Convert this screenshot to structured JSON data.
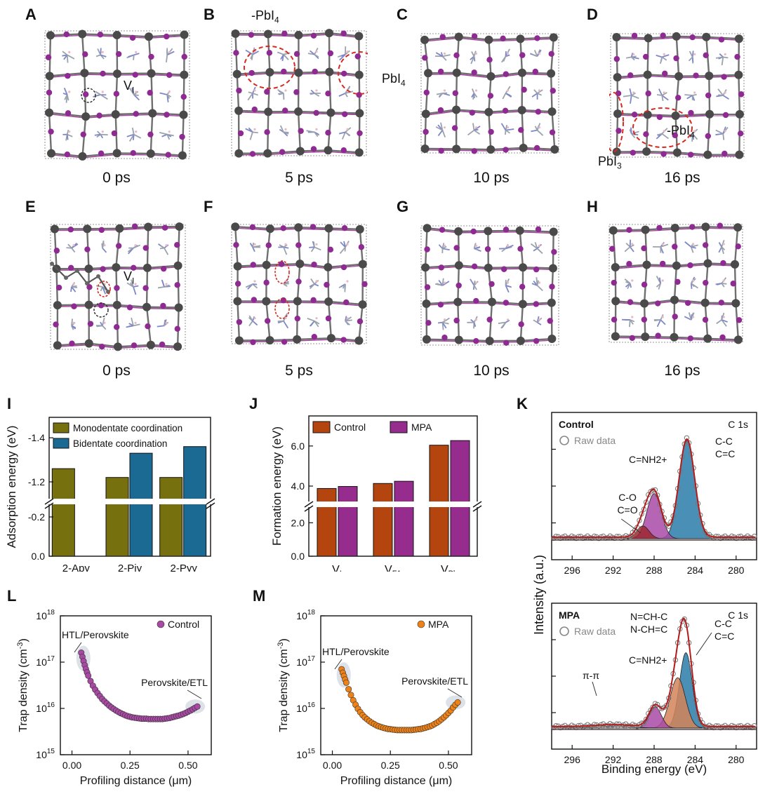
{
  "colors": {
    "lead": "#4a4a4a",
    "iodine": "#8e2a92",
    "bond_pb": "#6f6f6f",
    "bond_i": "#a4479f",
    "organic": "#9aa3ad",
    "highlight": "#d42a1f",
    "vacancy": "#222222",
    "mono": "#77700f",
    "bi": "#1b6a93",
    "control": "#b5450f",
    "mpa": "#952c8e",
    "control_scatter": "#a84aa4",
    "mpa_scatter": "#ee8216",
    "fit": "#b31b1b",
    "cc_peak": "#2a7ba8",
    "nh_peak": "#a84aa6",
    "co_peak": "#9d2730",
    "ch_peak": "#d48459"
  },
  "structures": [
    {
      "letter": "A",
      "time": "0 ps",
      "annotations": [
        {
          "text": "V",
          "sub": "I"
        }
      ]
    },
    {
      "letter": "B",
      "time": "5 ps",
      "annotations": [
        {
          "text": "-PbI",
          "sub": "4"
        },
        {
          "text": "PbI",
          "sub": "4"
        }
      ]
    },
    {
      "letter": "C",
      "time": "10 ps",
      "annotations": []
    },
    {
      "letter": "D",
      "time": "16 ps",
      "annotations": [
        {
          "text": "-PbI",
          "sub": "4"
        },
        {
          "text": "PbI",
          "sub": "3"
        }
      ]
    },
    {
      "letter": "E",
      "time": "0 ps",
      "annotations": [
        {
          "text": "V",
          "sub": "I"
        }
      ]
    },
    {
      "letter": "F",
      "time": "5 ps",
      "annotations": []
    },
    {
      "letter": "G",
      "time": "10 ps",
      "annotations": []
    },
    {
      "letter": "H",
      "time": "16 ps",
      "annotations": []
    }
  ],
  "chart_data": [
    {
      "panel": "I",
      "type": "bar",
      "title": "",
      "xlabel": "",
      "ylabel": "Adsorption energy (eV)",
      "categories": [
        "2-Apy",
        "2-Piy",
        "2-Pyy"
      ],
      "series": [
        {
          "name": "Monodentate coordination",
          "values": [
            -1.26,
            -1.22,
            -1.22
          ]
        },
        {
          "name": "Bidentate coordination",
          "values": [
            null,
            -1.33,
            -1.36
          ]
        }
      ],
      "axis": "reversed, broken",
      "lower_range": [
        0.0,
        -0.25
      ],
      "upper_range": [
        -1.13,
        -1.48
      ],
      "yticks": [
        "0.0",
        "-0.2",
        "-1.2",
        "-1.4"
      ],
      "legend": "top-left"
    },
    {
      "panel": "J",
      "type": "bar",
      "title": "",
      "xlabel": "",
      "ylabel": "Formation energy (eV)",
      "categories": [
        {
          "main": "V",
          "sub": "I"
        },
        {
          "main": "V",
          "sub": "FA"
        },
        {
          "main": "V",
          "sub": "Pb"
        }
      ],
      "series": [
        {
          "name": "Control",
          "values": [
            3.88,
            4.13,
            6.04
          ]
        },
        {
          "name": "MPA",
          "values": [
            3.98,
            4.24,
            6.27
          ]
        }
      ],
      "axis": "broken",
      "lower_range": [
        0.0,
        2.6
      ],
      "upper_range": [
        3.3,
        7.5
      ],
      "yticks": [
        "0.0",
        "2.0",
        "4.0",
        "6.0"
      ],
      "legend": "top-left"
    },
    {
      "panel": "K-top",
      "type": "line",
      "title": "Control",
      "label_right": "C 1s",
      "xlabel": "",
      "ylabel": "Intensity (a.u.)",
      "xlim": [
        298,
        278
      ],
      "xticks": [
        296,
        292,
        288,
        284,
        280
      ],
      "legend_entry": "Raw data",
      "components": [
        {
          "label_lines": [
            "C-C",
            "C=C"
          ],
          "center": 284.8,
          "height": 1.0,
          "width": 0.75
        },
        {
          "label_lines": [
            "C=NH2+"
          ],
          "center": 288.0,
          "height": 0.46,
          "width": 0.7
        },
        {
          "label_lines": [
            "C-O",
            "C=O"
          ],
          "center": 289.1,
          "height": 0.13,
          "width": 0.6
        }
      ]
    },
    {
      "panel": "K-bottom",
      "type": "line",
      "title": "MPA",
      "label_right": "C 1s",
      "xlabel": "Binding energy (eV)",
      "ylabel": "Intensity (a.u.)",
      "xlim": [
        298,
        278
      ],
      "xticks": [
        296,
        292,
        288,
        284,
        280
      ],
      "legend_entry": "Raw data",
      "components": [
        {
          "label_lines": [
            "C-C",
            "C=C"
          ],
          "center": 284.9,
          "height": 0.78,
          "width": 0.62
        },
        {
          "label_lines": [
            "N=CH-C",
            "N-CH=C"
          ],
          "center": 285.7,
          "height": 0.52,
          "width": 0.75
        },
        {
          "label_lines": [
            "C=NH2+"
          ],
          "center": 287.9,
          "height": 0.22,
          "width": 0.6
        },
        {
          "label_lines": [
            "π-π"
          ],
          "center": 292.0,
          "height": 0.02,
          "width": 1.8
        }
      ]
    },
    {
      "panel": "L",
      "type": "scatter",
      "title": "",
      "xlabel": "Profiling distance (μm)",
      "ylabel": "Trap density (cm-3)",
      "yscale": "log",
      "ylim": [
        1000000000000000.0,
        1e+18
      ],
      "xlim": [
        -0.05,
        0.6
      ],
      "xticks": [
        "0.00",
        "0.25",
        "0.50"
      ],
      "series_name": "Control",
      "annotations": [
        "HTL/Perovskite",
        "Perovskite/ETL"
      ],
      "x": [
        0.04,
        0.045,
        0.05,
        0.055,
        0.06,
        0.065,
        0.07,
        0.08,
        0.09,
        0.1,
        0.11,
        0.12,
        0.13,
        0.14,
        0.15,
        0.16,
        0.17,
        0.18,
        0.19,
        0.2,
        0.21,
        0.22,
        0.23,
        0.24,
        0.25,
        0.26,
        0.27,
        0.28,
        0.29,
        0.3,
        0.31,
        0.32,
        0.33,
        0.34,
        0.35,
        0.36,
        0.37,
        0.38,
        0.39,
        0.4,
        0.41,
        0.42,
        0.43,
        0.44,
        0.45,
        0.46,
        0.47,
        0.48,
        0.49,
        0.5,
        0.51,
        0.52,
        0.53,
        0.54
      ],
      "y": [
        1.6e+17,
        1.3e+17,
        1.05e+17,
        8.6e+16,
        7.1e+16,
        6e+16,
        5.1e+16,
        3.9e+16,
        3.1e+16,
        2.55e+16,
        2.15e+16,
        1.85e+16,
        1.6e+16,
        1.42e+16,
        1.28e+16,
        1.15e+16,
        1.05e+16,
        9700000000000000.0,
        9000000000000000.0,
        8400000000000000.0,
        7900000000000000.0,
        7500000000000000.0,
        7100000000000000.0,
        6800000000000000.0,
        6600000000000000.0,
        6400000000000000.0,
        6300000000000000.0,
        6200000000000000.0,
        6100000000000000.0,
        6000000000000000.0,
        6000000000000000.0,
        6000000000000000.0,
        5900000000000000.0,
        5900000000000000.0,
        5900000000000000.0,
        5900000000000000.0,
        5900000000000000.0,
        5900000000000000.0,
        5900000000000000.0,
        6000000000000000.0,
        6100000000000000.0,
        6200000000000000.0,
        6400000000000000.0,
        6600000000000000.0,
        6800000000000000.0,
        7000000000000000.0,
        7300000000000000.0,
        7600000000000000.0,
        8000000000000000.0,
        8500000000000000.0,
        9000000000000000.0,
        9600000000000000.0,
        1.03e+16,
        1.1e+16
      ]
    },
    {
      "panel": "M",
      "type": "scatter",
      "title": "",
      "xlabel": "Profiling distance (μm)",
      "ylabel": "Trap density (cm-3)",
      "yscale": "log",
      "ylim": [
        1000000000000000.0,
        1e+18
      ],
      "xlim": [
        -0.05,
        0.6
      ],
      "xticks": [
        "0.00",
        "0.25",
        "0.50"
      ],
      "series_name": "MPA",
      "annotations": [
        "HTL/Perovskite",
        "Perovskite/ETL"
      ],
      "x": [
        0.04,
        0.045,
        0.05,
        0.055,
        0.06,
        0.07,
        0.08,
        0.09,
        0.1,
        0.11,
        0.12,
        0.13,
        0.14,
        0.15,
        0.16,
        0.17,
        0.18,
        0.19,
        0.2,
        0.21,
        0.22,
        0.23,
        0.24,
        0.25,
        0.26,
        0.27,
        0.28,
        0.29,
        0.3,
        0.31,
        0.32,
        0.33,
        0.34,
        0.35,
        0.36,
        0.37,
        0.38,
        0.39,
        0.4,
        0.41,
        0.42,
        0.43,
        0.44,
        0.45,
        0.46,
        0.47,
        0.48,
        0.49,
        0.5,
        0.51,
        0.52,
        0.53,
        0.54
      ],
      "y": [
        7e+16,
        5.9e+16,
        5e+16,
        4.2e+16,
        3.6e+16,
        2.6e+16,
        1.95e+16,
        1.5e+16,
        1.2e+16,
        9800000000000000.0,
        8300000000000000.0,
        7200000000000000.0,
        6400000000000000.0,
        5800000000000000.0,
        5300000000000000.0,
        4900000000000000.0,
        4600000000000000.0,
        4300000000000000.0,
        4100000000000000.0,
        3950000000000000.0,
        3800000000000000.0,
        3700000000000000.0,
        3600000000000000.0,
        3550000000000000.0,
        3500000000000000.0,
        3450000000000000.0,
        3400000000000000.0,
        3400000000000000.0,
        3400000000000000.0,
        3400000000000000.0,
        3400000000000000.0,
        3400000000000000.0,
        3400000000000000.0,
        3450000000000000.0,
        3500000000000000.0,
        3550000000000000.0,
        3600000000000000.0,
        3700000000000000.0,
        3800000000000000.0,
        3950000000000000.0,
        4100000000000000.0,
        4300000000000000.0,
        4600000000000000.0,
        4900000000000000.0,
        5300000000000000.0,
        5800000000000000.0,
        6400000000000000.0,
        7100000000000000.0,
        8000000000000000.0,
        9000000000000000.0,
        1.05e+16,
        1.2e+16,
        1.35e+16
      ]
    }
  ]
}
